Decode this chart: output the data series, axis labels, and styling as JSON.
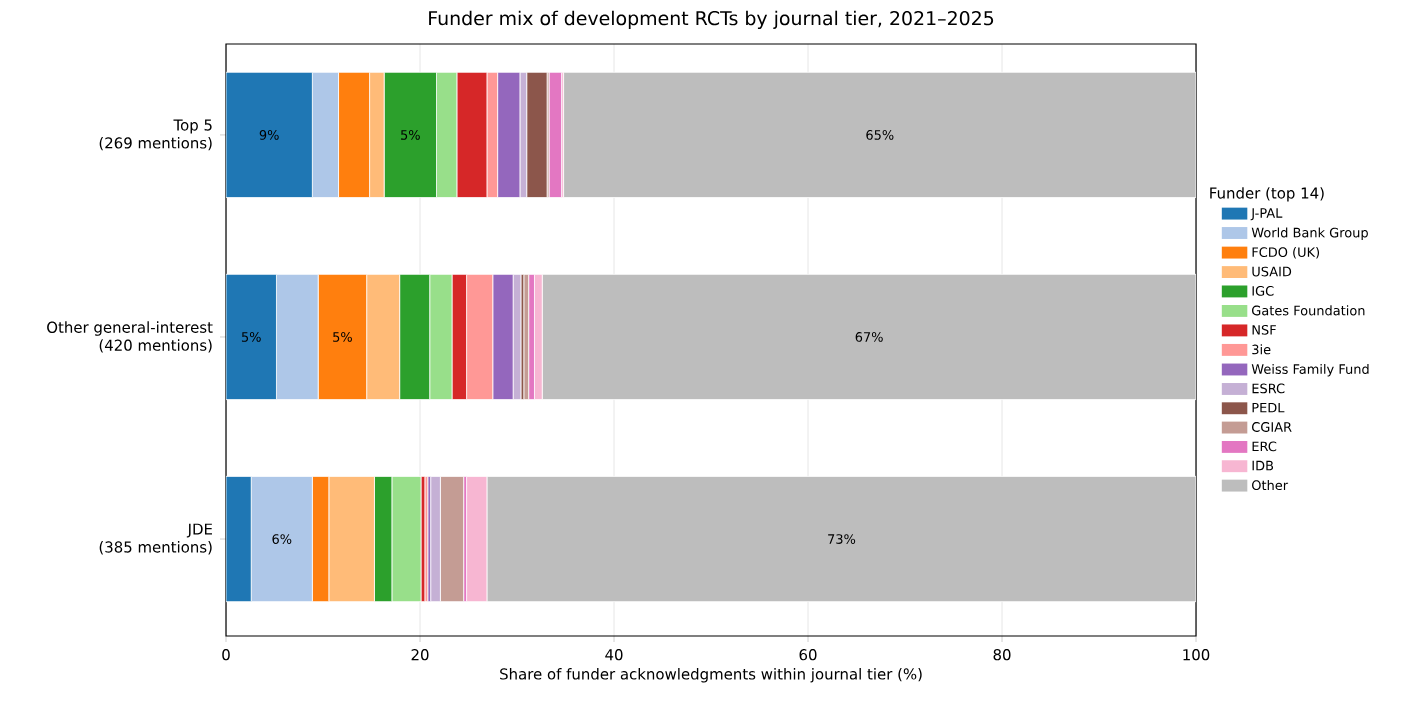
{
  "chart_data": {
    "type": "bar",
    "orientation": "horizontal",
    "stacked": true,
    "title": "Funder mix of development RCTs by journal tier, 2021–2025",
    "xlabel": "Share of funder acknowledgments within journal tier (%)",
    "legend_title": "Funder (top 14)",
    "legend": "right",
    "grid": "x",
    "categories": [
      "Top 5\n(269 mentions)",
      "Other general-interest\n(420 mentions)",
      "JDE\n(385 mentions)"
    ],
    "xlim": [
      0,
      100
    ],
    "xticks": [
      0,
      20,
      40,
      60,
      80,
      100
    ],
    "series": [
      {
        "name": "J-PAL",
        "color": "#1f77b4",
        "values": [
          8.9,
          5.2,
          2.6
        ],
        "value_labels": [
          "9%",
          "5%",
          null
        ]
      },
      {
        "name": "World Bank Group",
        "color": "#aec7e8",
        "values": [
          2.7,
          4.3,
          6.3
        ],
        "value_labels": [
          null,
          null,
          "6%"
        ]
      },
      {
        "name": "FCDO (UK)",
        "color": "#ff7f0e",
        "values": [
          3.2,
          5.0,
          1.7
        ],
        "value_labels": [
          null,
          "5%",
          null
        ]
      },
      {
        "name": "USAID",
        "color": "#ffbb78",
        "values": [
          1.5,
          3.4,
          4.7
        ]
      },
      {
        "name": "IGC",
        "color": "#2ca02c",
        "values": [
          5.4,
          3.1,
          1.8
        ],
        "value_labels": [
          "5%",
          null,
          null
        ]
      },
      {
        "name": "Gates Foundation",
        "color": "#98df8a",
        "values": [
          2.1,
          2.3,
          3.0
        ]
      },
      {
        "name": "NSF",
        "color": "#d62728",
        "values": [
          3.1,
          1.5,
          0.4
        ]
      },
      {
        "name": "3ie",
        "color": "#ff9896",
        "values": [
          1.1,
          2.7,
          0.3
        ]
      },
      {
        "name": "Weiss Family Fund",
        "color": "#9467bd",
        "values": [
          2.3,
          2.1,
          0.3
        ]
      },
      {
        "name": "ESRC",
        "color": "#c5b0d5",
        "values": [
          0.7,
          0.8,
          1.0
        ]
      },
      {
        "name": "PEDL",
        "color": "#8c564b",
        "values": [
          2.1,
          0.3,
          null
        ]
      },
      {
        "name": "CGIAR",
        "color": "#c49c94",
        "values": [
          0.2,
          0.5,
          2.4
        ]
      },
      {
        "name": "ERC",
        "color": "#e377c2",
        "values": [
          1.3,
          0.6,
          0.3
        ]
      },
      {
        "name": "IDB",
        "color": "#f7b6d2",
        "values": [
          0.2,
          0.8,
          2.1
        ]
      },
      {
        "name": "Other",
        "color": "#bdbdbd",
        "values": [
          65.2,
          67.4,
          73.1
        ],
        "value_labels": [
          "65%",
          "67%",
          "73%"
        ]
      }
    ]
  }
}
